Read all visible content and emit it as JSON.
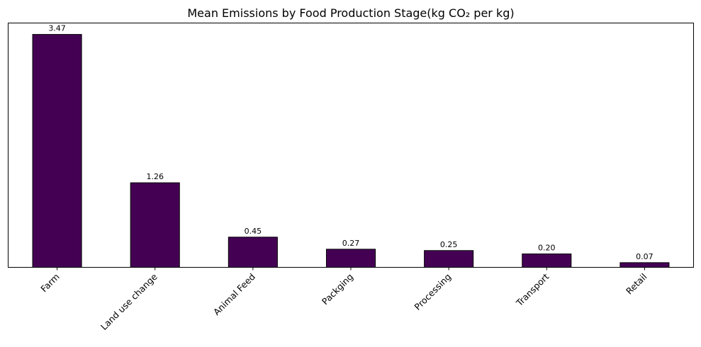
{
  "chart_data": {
    "type": "bar",
    "title": "Mean Emissions by Food Production Stage(kg CO₂ per kg)",
    "xlabel": "",
    "ylabel": "",
    "categories": [
      "Farm",
      "Land use change",
      "Animal Feed",
      "Packging",
      "Processing",
      "Transport",
      "Retail"
    ],
    "values": [
      3.47,
      1.26,
      0.45,
      0.27,
      0.25,
      0.2,
      0.07
    ],
    "value_labels": [
      "3.47",
      "1.26",
      "0.45",
      "0.27",
      "0.25",
      "0.20",
      "0.07"
    ],
    "ylim": [
      0,
      3.64
    ],
    "y_ticks_visible": false,
    "grid": false,
    "legend": "none",
    "bar_color": "#440154",
    "bar_edge_color": "#000000"
  }
}
